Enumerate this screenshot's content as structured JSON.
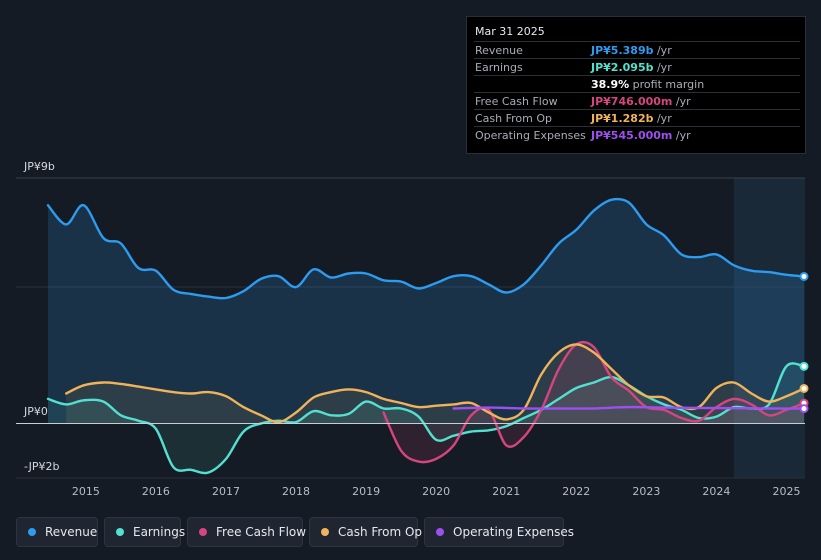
{
  "tooltip": {
    "date": "Mar 31 2025",
    "rows": [
      {
        "label": "Revenue",
        "value": "JP¥5.389b",
        "unit": " /yr",
        "color": "#2d9bf0"
      },
      {
        "label": "Earnings",
        "value": "JP¥2.095b",
        "unit": " /yr",
        "color": "#54e0d0"
      },
      {
        "label": "",
        "value": "38.9%",
        "unit": " profit margin",
        "color": "#ffffff"
      },
      {
        "label": "Free Cash Flow",
        "value": "JP¥746.000m",
        "unit": " /yr",
        "color": "#d6457f"
      },
      {
        "label": "Cash From Op",
        "value": "JP¥1.282b",
        "unit": " /yr",
        "color": "#f0b35a"
      },
      {
        "label": "Operating Expenses",
        "value": "JP¥545.000m",
        "unit": " /yr",
        "color": "#9d4ff0"
      }
    ]
  },
  "legend": [
    {
      "label": "Revenue",
      "color": "#2d9bf0"
    },
    {
      "label": "Earnings",
      "color": "#54e0d0"
    },
    {
      "label": "Free Cash Flow",
      "color": "#d6457f"
    },
    {
      "label": "Cash From Op",
      "color": "#f0b35a"
    },
    {
      "label": "Operating Expenses",
      "color": "#9d4ff0"
    }
  ],
  "chart_data": {
    "type": "area",
    "title": "",
    "xlabel": "",
    "ylabel": "",
    "xlim": [
      2014.46,
      2025.25
    ],
    "ylim": [
      -2,
      9
    ],
    "y_tick_labels": [
      {
        "value": 9,
        "label": "JP¥9b"
      },
      {
        "value": 0,
        "label": "JP¥0"
      },
      {
        "value": -2,
        "label": "-JP¥2b"
      }
    ],
    "x_ticks": [
      2015,
      2016,
      2017,
      2018,
      2019,
      2020,
      2021,
      2022,
      2023,
      2024,
      2025
    ],
    "highlight_from": 2024.25,
    "series": [
      {
        "name": "Revenue",
        "color": "#2d9bf0",
        "fill": true,
        "x": [
          2014.46,
          2014.72,
          2014.97,
          2015.25,
          2015.5,
          2015.75,
          2016.0,
          2016.25,
          2016.5,
          2016.75,
          2017.0,
          2017.25,
          2017.5,
          2017.75,
          2018.0,
          2018.25,
          2018.5,
          2018.75,
          2019.0,
          2019.25,
          2019.5,
          2019.75,
          2020.0,
          2020.25,
          2020.5,
          2020.75,
          2021.0,
          2021.25,
          2021.5,
          2021.75,
          2022.0,
          2022.25,
          2022.5,
          2022.75,
          2023.0,
          2023.25,
          2023.5,
          2023.75,
          2024.0,
          2024.25,
          2024.5,
          2024.75,
          2025.0,
          2025.25
        ],
        "values": [
          8.0,
          7.3,
          8.0,
          6.8,
          6.6,
          5.7,
          5.6,
          4.9,
          4.75,
          4.65,
          4.6,
          4.85,
          5.3,
          5.4,
          5.0,
          5.65,
          5.35,
          5.5,
          5.5,
          5.25,
          5.2,
          4.95,
          5.15,
          5.4,
          5.4,
          5.1,
          4.8,
          5.1,
          5.8,
          6.6,
          7.1,
          7.8,
          8.2,
          8.1,
          7.3,
          6.9,
          6.2,
          6.1,
          6.2,
          5.8,
          5.6,
          5.55,
          5.45,
          5.39
        ]
      },
      {
        "name": "Earnings",
        "color": "#54e0d0",
        "fill": true,
        "x": [
          2014.46,
          2014.72,
          2014.97,
          2015.25,
          2015.5,
          2015.75,
          2016.0,
          2016.25,
          2016.5,
          2016.75,
          2017.0,
          2017.25,
          2017.5,
          2017.75,
          2018.0,
          2018.25,
          2018.5,
          2018.75,
          2019.0,
          2019.25,
          2019.5,
          2019.75,
          2020.0,
          2020.25,
          2020.5,
          2020.75,
          2021.0,
          2021.25,
          2021.5,
          2021.75,
          2022.0,
          2022.25,
          2022.5,
          2022.75,
          2023.0,
          2023.25,
          2023.5,
          2023.75,
          2024.0,
          2024.25,
          2024.5,
          2024.75,
          2025.0,
          2025.25
        ],
        "values": [
          0.9,
          0.7,
          0.85,
          0.8,
          0.3,
          0.1,
          -0.2,
          -1.6,
          -1.7,
          -1.8,
          -1.3,
          -0.3,
          0.0,
          0.1,
          0.05,
          0.45,
          0.3,
          0.35,
          0.8,
          0.55,
          0.55,
          0.25,
          -0.6,
          -0.45,
          -0.3,
          -0.25,
          -0.1,
          0.2,
          0.5,
          0.9,
          1.3,
          1.5,
          1.7,
          1.4,
          1.0,
          0.7,
          0.5,
          0.2,
          0.25,
          0.6,
          0.55,
          0.7,
          2.1,
          2.095
        ]
      },
      {
        "name": "Free Cash Flow",
        "color": "#d6457f",
        "fill": true,
        "x": [
          2019.25,
          2019.5,
          2019.75,
          2020.0,
          2020.25,
          2020.5,
          2020.75,
          2021.0,
          2021.25,
          2021.5,
          2021.75,
          2022.0,
          2022.25,
          2022.5,
          2022.75,
          2023.0,
          2023.25,
          2023.5,
          2023.75,
          2024.0,
          2024.25,
          2024.5,
          2024.75,
          2025.0,
          2025.25
        ],
        "values": [
          0.4,
          -1.0,
          -1.4,
          -1.3,
          -0.8,
          0.3,
          0.5,
          -0.8,
          -0.5,
          0.5,
          2.0,
          2.9,
          2.8,
          1.7,
          1.2,
          0.6,
          0.5,
          0.2,
          0.1,
          0.6,
          0.9,
          0.7,
          0.3,
          0.5,
          0.746
        ]
      },
      {
        "name": "Cash From Op",
        "color": "#f0b35a",
        "fill": true,
        "x": [
          2014.72,
          2014.97,
          2015.25,
          2015.5,
          2015.75,
          2016.0,
          2016.25,
          2016.5,
          2016.75,
          2017.0,
          2017.25,
          2017.5,
          2017.75,
          2018.0,
          2018.25,
          2018.5,
          2018.75,
          2019.0,
          2019.25,
          2019.5,
          2019.75,
          2020.0,
          2020.25,
          2020.5,
          2020.75,
          2021.0,
          2021.25,
          2021.5,
          2021.75,
          2022.0,
          2022.25,
          2022.5,
          2022.75,
          2023.0,
          2023.25,
          2023.5,
          2023.75,
          2024.0,
          2024.25,
          2024.5,
          2024.75,
          2025.0,
          2025.25
        ],
        "values": [
          1.1,
          1.4,
          1.5,
          1.45,
          1.35,
          1.25,
          1.15,
          1.1,
          1.15,
          1.0,
          0.6,
          0.3,
          0.05,
          0.4,
          0.95,
          1.15,
          1.25,
          1.15,
          0.9,
          0.75,
          0.6,
          0.65,
          0.7,
          0.75,
          0.4,
          0.15,
          0.5,
          1.8,
          2.6,
          2.9,
          2.6,
          2.0,
          1.4,
          1.0,
          0.95,
          0.6,
          0.6,
          1.3,
          1.5,
          1.1,
          0.8,
          1.0,
          1.282
        ]
      },
      {
        "name": "Operating Expenses",
        "color": "#9d4ff0",
        "fill": false,
        "x": [
          2020.25,
          2020.75,
          2021.25,
          2021.75,
          2022.25,
          2022.75,
          2023.25,
          2023.75,
          2024.25,
          2024.75,
          2025.25
        ],
        "values": [
          0.55,
          0.58,
          0.55,
          0.55,
          0.55,
          0.6,
          0.58,
          0.57,
          0.56,
          0.55,
          0.545
        ]
      }
    ]
  }
}
